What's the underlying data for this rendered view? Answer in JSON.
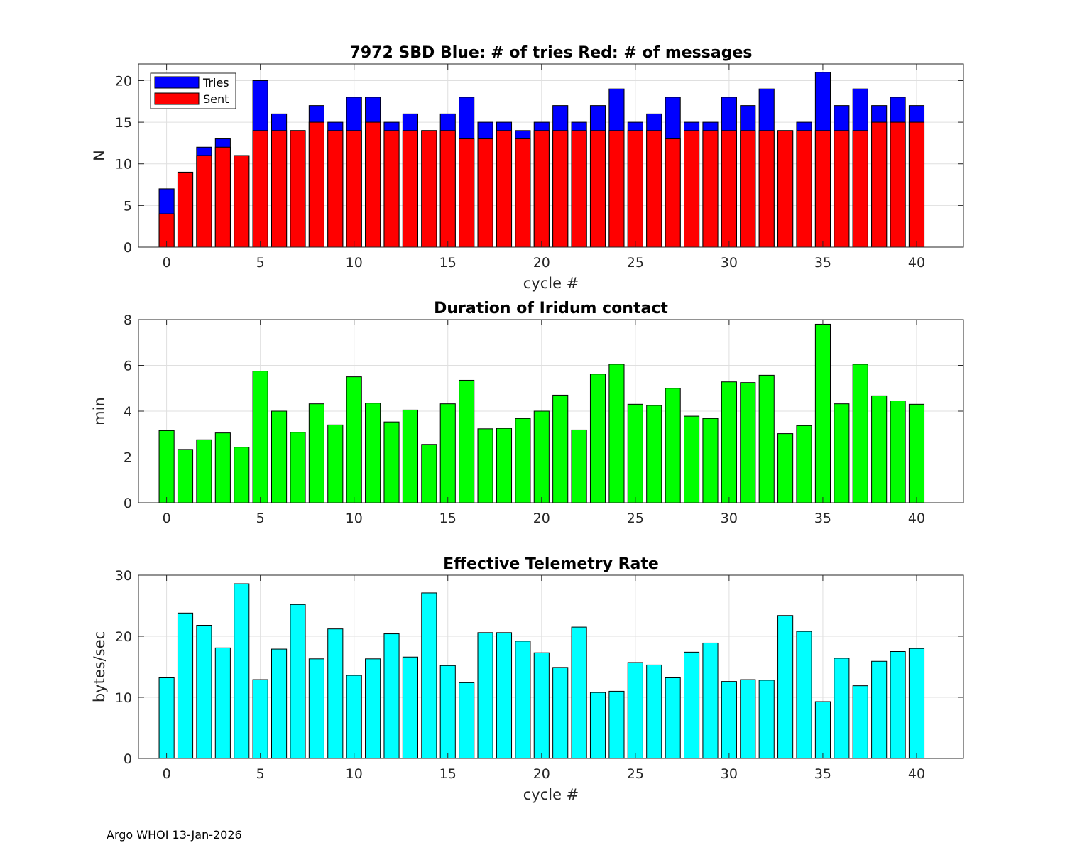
{
  "footer": "Argo WHOI 13-Jan-2026",
  "colors": {
    "tries": "#0000ff",
    "sent": "#ff0000",
    "duration": "#00ff00",
    "rate": "#00ffff"
  },
  "chart_data": [
    {
      "type": "bar",
      "title": "7972 SBD  Blue: # of tries   Red: # of messages",
      "xlabel": "cycle #",
      "ylabel": "N",
      "xlim": [
        -1.5,
        42.5
      ],
      "ylim": [
        0,
        22
      ],
      "xticks": [
        0,
        5,
        10,
        15,
        20,
        25,
        30,
        35,
        40
      ],
      "yticks": [
        0,
        5,
        10,
        15,
        20
      ],
      "x": [
        0,
        1,
        2,
        3,
        4,
        5,
        6,
        7,
        8,
        9,
        10,
        11,
        12,
        13,
        14,
        15,
        16,
        17,
        18,
        19,
        20,
        21,
        22,
        23,
        24,
        25,
        26,
        27,
        28,
        29,
        30,
        31,
        32,
        33,
        34,
        35,
        36,
        37,
        38,
        39,
        40
      ],
      "legend": {
        "location": "top-left",
        "entries": [
          "Tries",
          "Sent"
        ]
      },
      "series": [
        {
          "name": "Tries",
          "color": "#0000ff",
          "values": [
            7,
            9,
            12,
            13,
            11,
            20,
            16,
            14,
            17,
            15,
            18,
            18,
            15,
            16,
            14,
            16,
            18,
            15,
            15,
            14,
            15,
            17,
            15,
            17,
            19,
            15,
            16,
            18,
            15,
            15,
            18,
            17,
            19,
            14,
            15,
            21,
            17,
            19,
            17,
            18,
            17
          ]
        },
        {
          "name": "Sent",
          "color": "#ff0000",
          "values": [
            4,
            9,
            11,
            12,
            11,
            14,
            14,
            14,
            15,
            14,
            14,
            15,
            14,
            14,
            14,
            14,
            13,
            13,
            14,
            13,
            14,
            14,
            14,
            14,
            14,
            14,
            14,
            13,
            14,
            14,
            14,
            14,
            14,
            14,
            14,
            14,
            14,
            14,
            15,
            15,
            15
          ]
        }
      ]
    },
    {
      "type": "bar",
      "title": "Duration of Iridum contact",
      "xlabel": "",
      "ylabel": "min",
      "xlim": [
        -1.5,
        42.5
      ],
      "ylim": [
        0,
        8
      ],
      "xticks": [
        0,
        5,
        10,
        15,
        20,
        25,
        30,
        35,
        40
      ],
      "yticks": [
        0,
        2,
        4,
        6,
        8
      ],
      "x": [
        -1,
        0,
        1,
        2,
        3,
        4,
        5,
        6,
        7,
        8,
        9,
        10,
        11,
        12,
        13,
        14,
        15,
        16,
        17,
        18,
        19,
        20,
        21,
        22,
        23,
        24,
        25,
        26,
        27,
        28,
        29,
        30,
        31,
        32,
        33,
        34,
        35,
        36,
        37,
        38,
        39,
        40
      ],
      "series": [
        {
          "name": "Duration",
          "color": "#00ff00",
          "values": [
            0,
            3.15,
            2.33,
            2.75,
            3.05,
            2.43,
            5.75,
            4.0,
            3.08,
            4.32,
            3.4,
            5.5,
            4.35,
            3.53,
            4.05,
            2.55,
            4.32,
            5.35,
            3.23,
            3.25,
            3.68,
            4.0,
            4.7,
            3.18,
            5.62,
            6.05,
            4.3,
            4.25,
            5.0,
            3.78,
            3.68,
            5.28,
            5.25,
            5.57,
            3.02,
            3.37,
            7.8,
            4.32,
            6.05,
            4.67,
            4.45,
            4.3
          ]
        }
      ]
    },
    {
      "type": "bar",
      "title": "Effective Telemetry Rate",
      "xlabel": "cycle #",
      "ylabel": "bytes/sec",
      "xlim": [
        -1.5,
        42.5
      ],
      "ylim": [
        0,
        30
      ],
      "xticks": [
        0,
        5,
        10,
        15,
        20,
        25,
        30,
        35,
        40
      ],
      "yticks": [
        0,
        10,
        20,
        30
      ],
      "x": [
        0,
        1,
        2,
        3,
        4,
        5,
        6,
        7,
        8,
        9,
        10,
        11,
        12,
        13,
        14,
        15,
        16,
        17,
        18,
        19,
        20,
        21,
        22,
        23,
        24,
        25,
        26,
        27,
        28,
        29,
        30,
        31,
        32,
        33,
        34,
        35,
        36,
        37,
        38,
        39,
        40
      ],
      "series": [
        {
          "name": "Rate",
          "color": "#00ffff",
          "values": [
            13.2,
            23.8,
            21.8,
            18.1,
            28.6,
            12.9,
            17.9,
            25.2,
            16.3,
            21.2,
            13.6,
            16.3,
            20.4,
            16.6,
            27.1,
            15.2,
            12.4,
            20.6,
            20.6,
            19.2,
            17.3,
            14.9,
            21.5,
            10.8,
            11.0,
            15.7,
            15.3,
            13.2,
            17.4,
            18.9,
            12.6,
            12.9,
            12.8,
            23.4,
            20.8,
            9.3,
            16.4,
            11.9,
            15.9,
            17.5,
            18.0
          ]
        }
      ]
    }
  ]
}
